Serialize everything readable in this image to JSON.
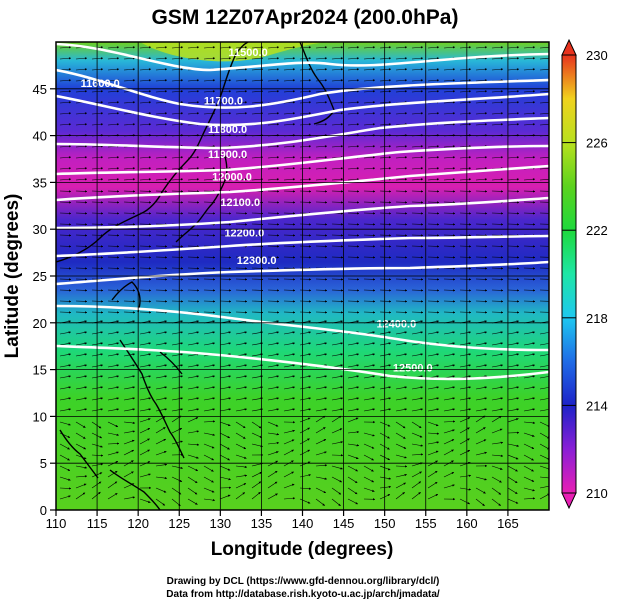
{
  "title": "GSM 12Z07Apr2024 (200.0hPa)",
  "x_axis": {
    "label": "Longitude (degrees)",
    "range": [
      110,
      170
    ],
    "ticks": [
      "110",
      "115",
      "120",
      "125",
      "130",
      "135",
      "140",
      "145",
      "150",
      "155",
      "160",
      "165"
    ]
  },
  "y_axis": {
    "label": "Latitude  (degrees)",
    "range": [
      0,
      50
    ],
    "ticks": [
      "0",
      "5",
      "10",
      "15",
      "20",
      "25",
      "30",
      "35",
      "40",
      "45"
    ]
  },
  "colorbar": {
    "min": 210,
    "max": 230,
    "tick_labels": [
      "210",
      "214",
      "218",
      "222",
      "226",
      "230"
    ],
    "colors": [
      "#e81fb4",
      "#8a1fd6",
      "#1d22c8",
      "#1f6be6",
      "#1ec8f0",
      "#1ee6a6",
      "#1ed93d",
      "#5cd21e",
      "#b8e01e",
      "#f0d21e",
      "#f08a1e",
      "#e8331e"
    ]
  },
  "contour_labels": [
    {
      "text": "11500.0",
      "lon": 131,
      "lat": 48.5
    },
    {
      "text": "11600.0",
      "lon": 113,
      "lat": 45.2
    },
    {
      "text": "11700.0",
      "lon": 128,
      "lat": 43.3
    },
    {
      "text": "11800.0",
      "lon": 128.5,
      "lat": 40.3
    },
    {
      "text": "11900.0",
      "lon": 128.5,
      "lat": 37.6
    },
    {
      "text": "12000.0",
      "lon": 129,
      "lat": 35.2
    },
    {
      "text": "12100.0",
      "lon": 130,
      "lat": 32.5
    },
    {
      "text": "12200.0",
      "lon": 130.5,
      "lat": 29.2
    },
    {
      "text": "12300.0",
      "lon": 132,
      "lat": 26.3
    },
    {
      "text": "12400.0",
      "lon": 149,
      "lat": 19.5
    },
    {
      "text": "12500.0",
      "lon": 151,
      "lat": 14.8
    }
  ],
  "credits": {
    "line1": "Drawing by DCL (https://www.gfd-dennou.org/library/dcl/)",
    "line2": "Data from http://database.rish.kyoto-u.ac.jp/arch/jmadata/"
  }
}
